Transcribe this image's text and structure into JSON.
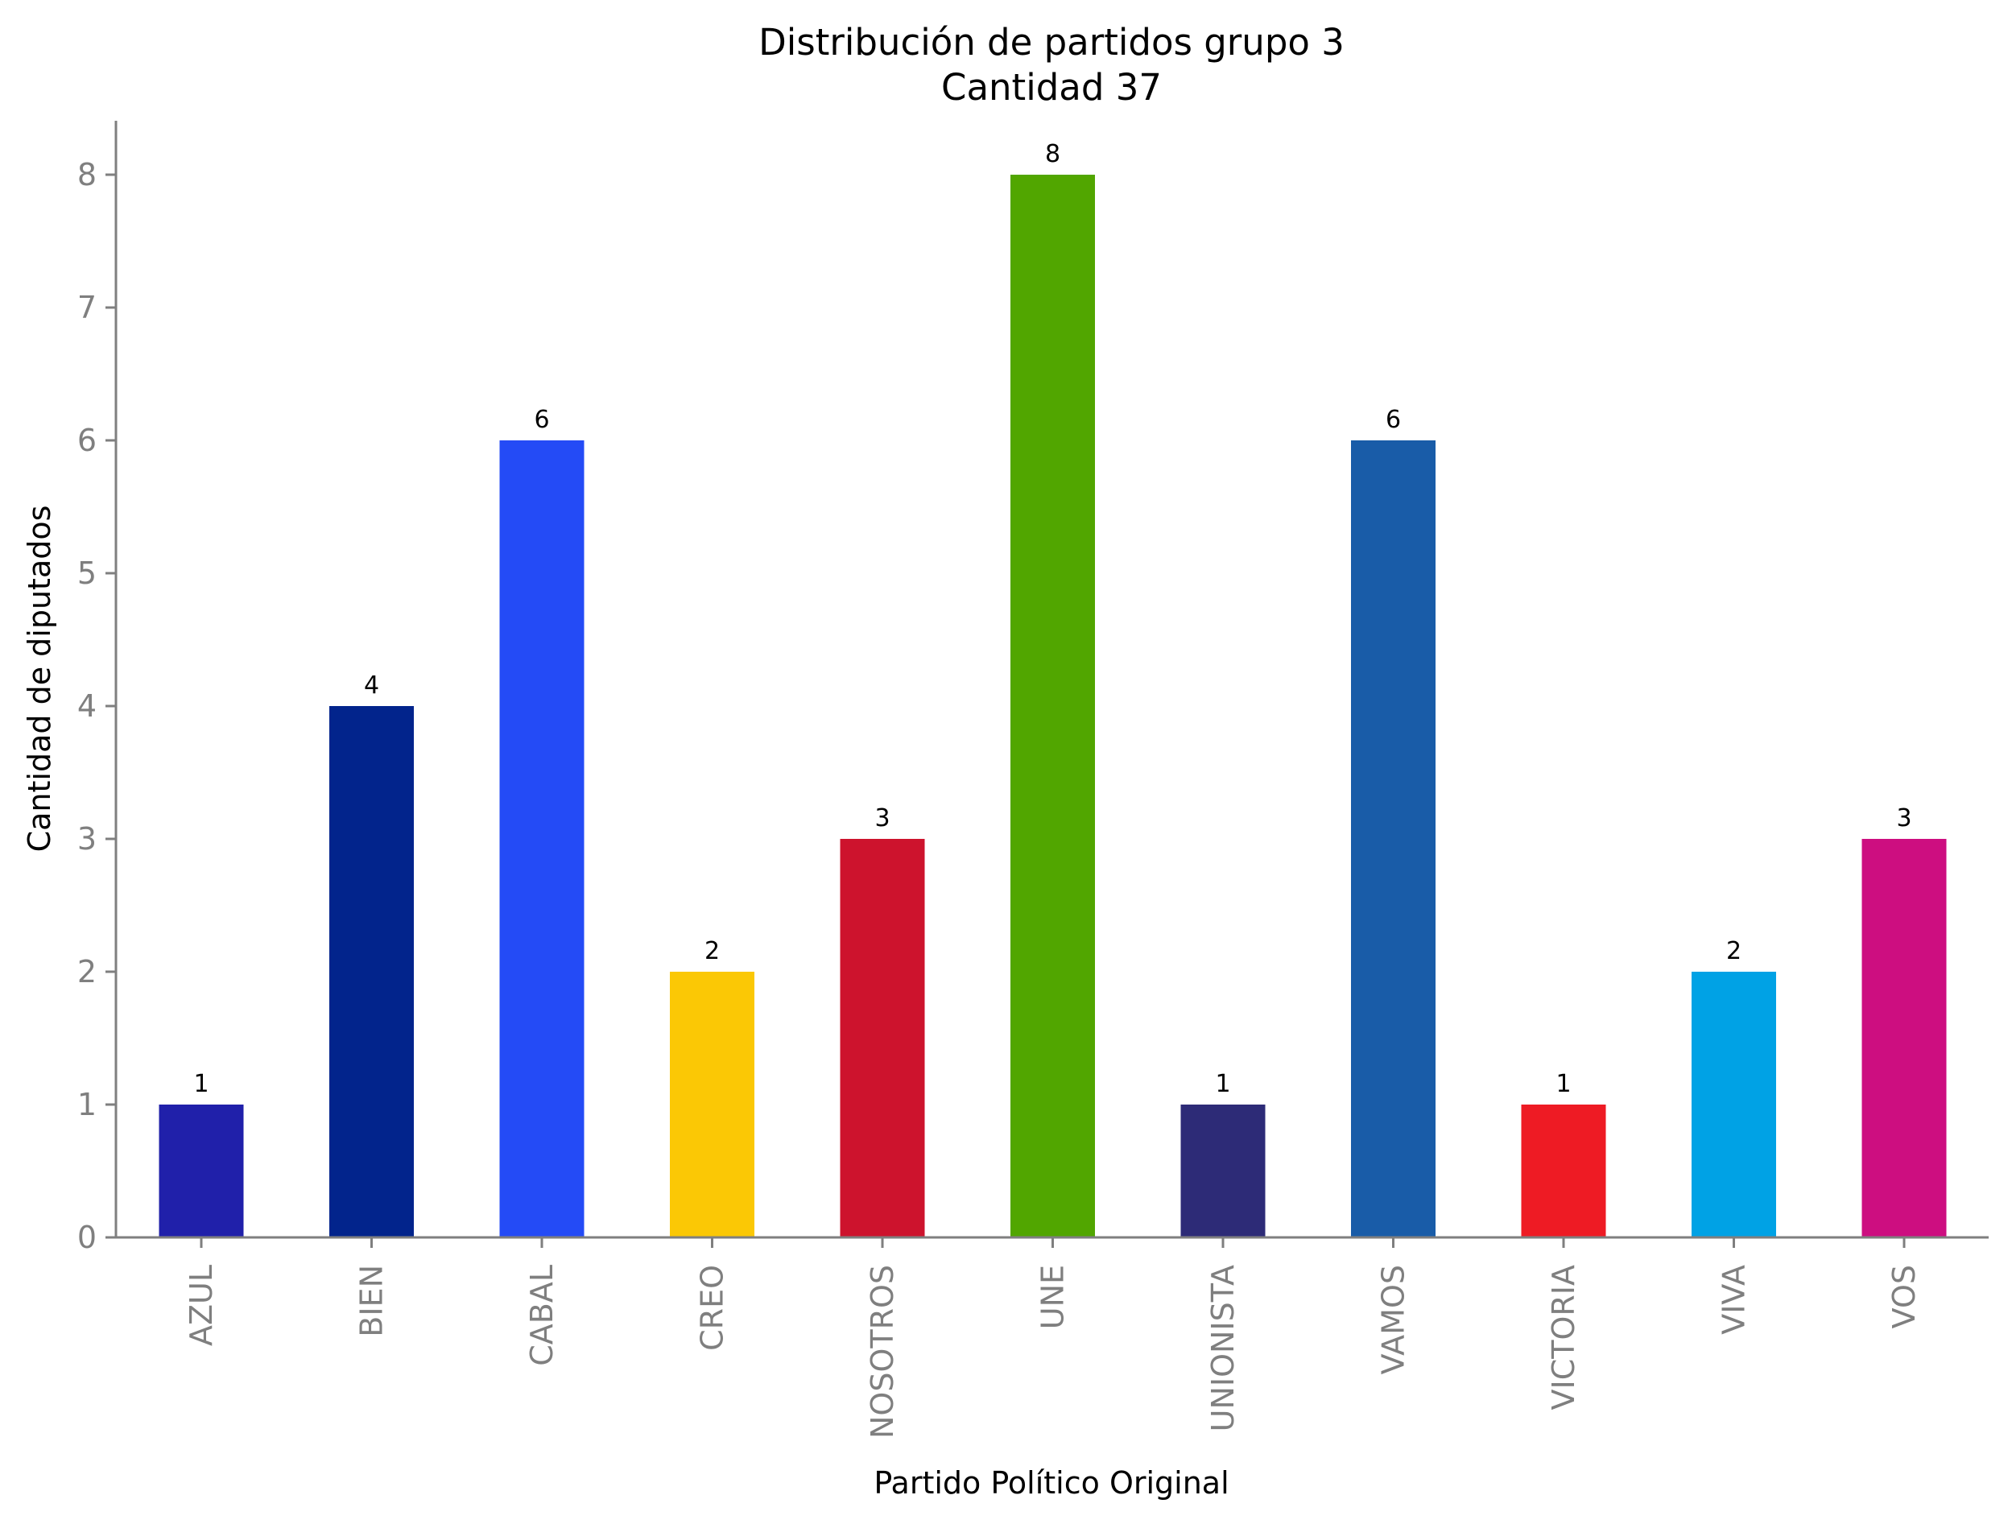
{
  "chart_data": {
    "type": "bar",
    "title": "Distribución de partidos grupo 3",
    "subtitle": "Cantidad 37",
    "xlabel": "Partido Político Original",
    "ylabel": "Cantidad de diputados",
    "categories": [
      "AZUL",
      "BIEN",
      "CABAL",
      "CREO",
      "NOSOTROS",
      "UNE",
      "UNIONISTA",
      "VAMOS",
      "VICTORIA",
      "VIVA",
      "VOS"
    ],
    "values": [
      1,
      4,
      6,
      2,
      3,
      8,
      1,
      6,
      1,
      2,
      3
    ],
    "colors": [
      "#2020aa",
      "#02248c",
      "#244bf6",
      "#fbc805",
      "#cd132d",
      "#51a600",
      "#2d2b77",
      "#195ca8",
      "#ee1b24",
      "#00a2e5",
      "#cd0e80"
    ],
    "ylim": [
      0,
      8.4
    ],
    "yticks": [
      0,
      1,
      2,
      3,
      4,
      5,
      6,
      7,
      8
    ],
    "grid": false,
    "legend": "none",
    "data_labels": true
  }
}
